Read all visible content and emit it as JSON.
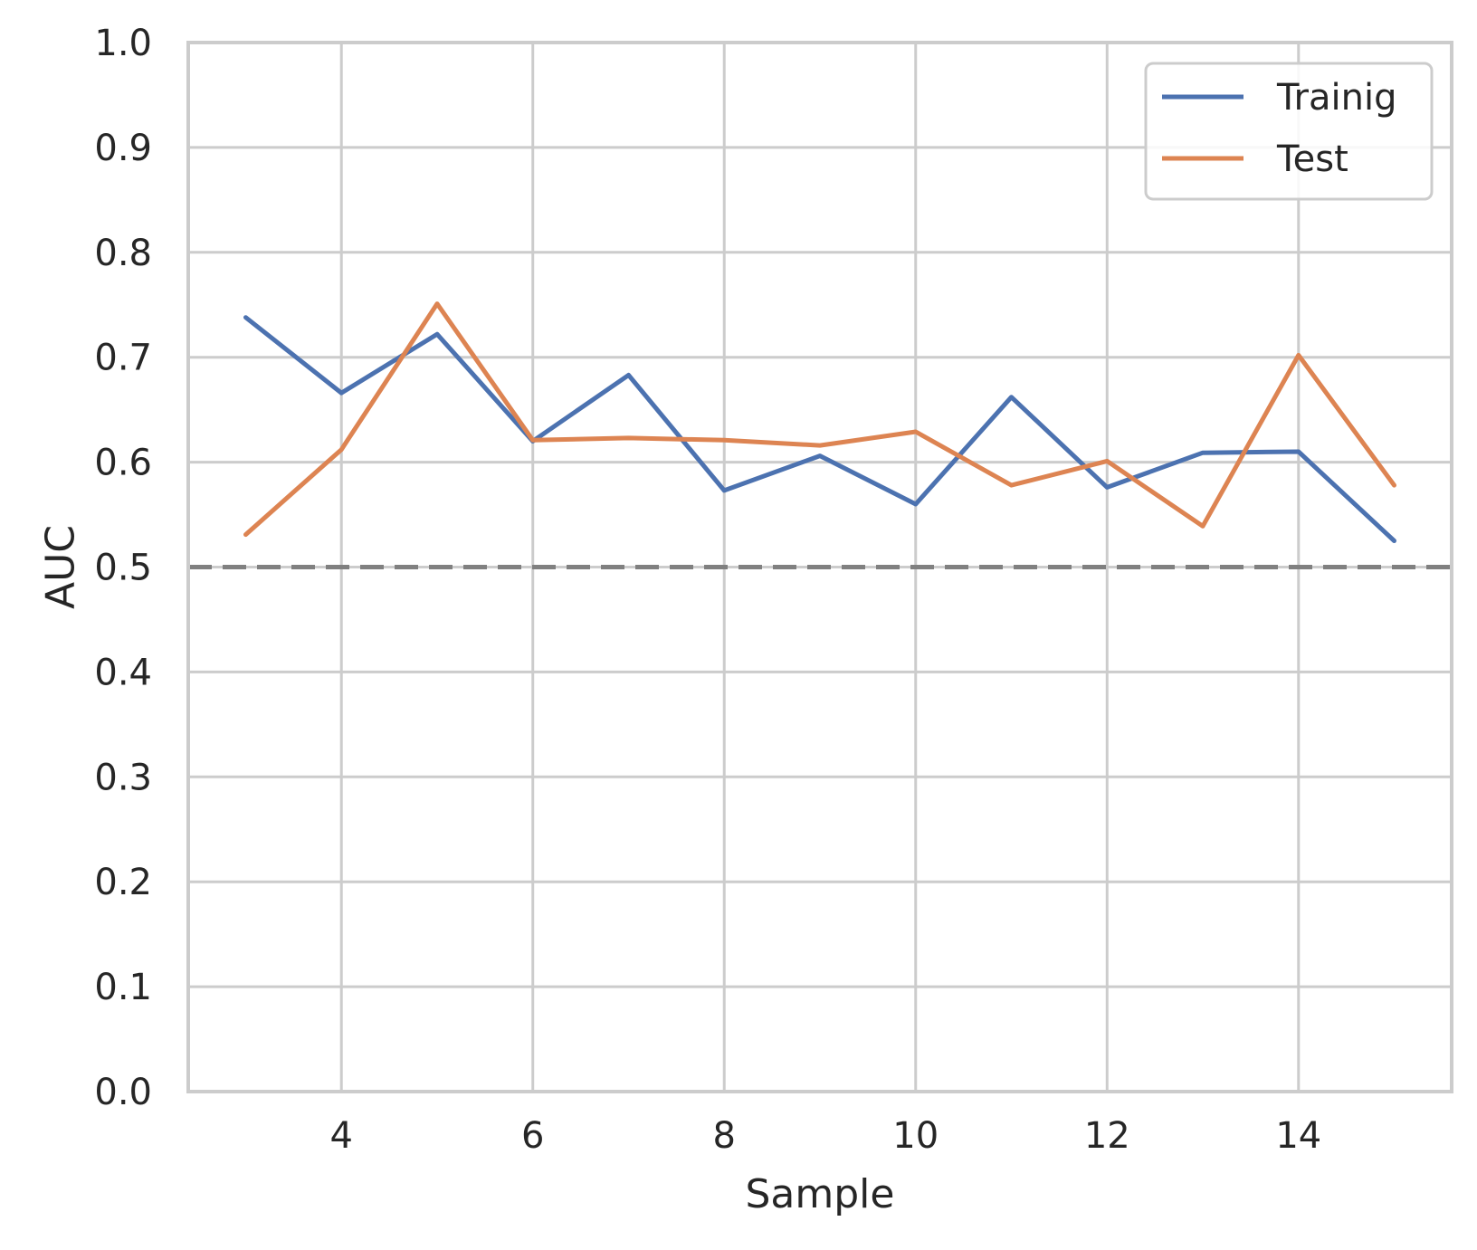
{
  "chart_data": {
    "type": "line",
    "title": "",
    "xlabel": "Sample",
    "ylabel": "AUC",
    "xlim": [
      2.4,
      15.6
    ],
    "ylim": [
      0.0,
      1.0
    ],
    "xticks": [
      4,
      6,
      8,
      10,
      12,
      14
    ],
    "xtick_labels": [
      "4",
      "6",
      "8",
      "10",
      "12",
      "14"
    ],
    "yticks": [
      0.0,
      0.1,
      0.2,
      0.3,
      0.4,
      0.5,
      0.6,
      0.7,
      0.8,
      0.9,
      1.0
    ],
    "ytick_labels": [
      "0.0",
      "0.1",
      "0.2",
      "0.3",
      "0.4",
      "0.5",
      "0.6",
      "0.7",
      "0.8",
      "0.9",
      "1.0"
    ],
    "grid": true,
    "legend_position": "top-right",
    "x": [
      3,
      4,
      5,
      6,
      7,
      8,
      9,
      10,
      11,
      12,
      13,
      14,
      15
    ],
    "series": [
      {
        "name": "Trainig",
        "color": "#4c72b0",
        "values": [
          0.738,
          0.666,
          0.722,
          0.62,
          0.683,
          0.573,
          0.606,
          0.56,
          0.662,
          0.576,
          0.609,
          0.61,
          0.525
        ]
      },
      {
        "name": "Test",
        "color": "#dd8452",
        "values": [
          0.531,
          0.612,
          0.751,
          0.621,
          0.623,
          0.621,
          0.616,
          0.629,
          0.578,
          0.601,
          0.539,
          0.702,
          0.578
        ]
      }
    ],
    "reference_line": {
      "y": 0.5,
      "style": "dashed",
      "color": "#808080"
    }
  }
}
